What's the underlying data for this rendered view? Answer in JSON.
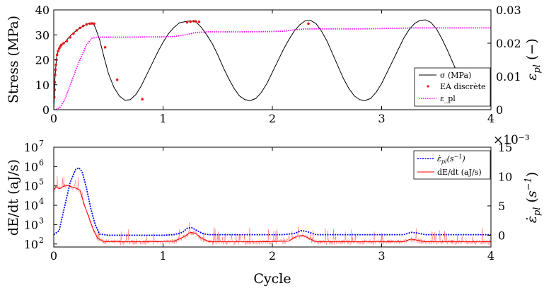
{
  "chart_data": [
    {
      "type": "line",
      "panel": "top",
      "ylabel": "Stress (MPa)",
      "y2label": "ε_pl (−)",
      "xlim": [
        0,
        4
      ],
      "ylim": [
        0,
        40
      ],
      "y2lim": [
        0,
        0.03
      ],
      "xticks": [
        "0",
        "1",
        "2",
        "3",
        "4"
      ],
      "yticks": [
        "0",
        "10",
        "20",
        "30",
        "40"
      ],
      "y2ticks": [
        "0",
        "0.01",
        "0.02",
        "0.03"
      ],
      "grid": false,
      "legend_position": "bottom-right",
      "legend": [
        "σ (MPa)",
        "EA discrète",
        "ε_pl"
      ],
      "colors": {
        "stress": "#000000",
        "ea": "#e41a1c",
        "strain": "#ff00ff"
      },
      "series": [
        {
          "name": "σ (MPa)",
          "axis": "left",
          "style": "solid",
          "x": [
            0,
            0.005,
            0.01,
            0.02,
            0.03,
            0.05,
            0.07,
            0.1,
            0.13,
            0.16,
            0.2,
            0.24,
            0.28,
            0.32,
            0.36,
            0.38,
            0.42,
            0.46,
            0.5,
            0.55,
            0.6,
            0.65,
            0.7,
            0.75,
            0.8,
            0.85,
            0.9,
            0.95,
            1.0,
            1.05,
            1.1,
            1.15,
            1.2,
            1.25,
            1.3,
            1.35,
            1.4,
            1.45,
            1.5,
            1.55,
            1.6,
            1.65,
            1.7,
            1.75,
            1.8,
            1.85,
            1.9,
            1.95,
            2.0,
            2.05,
            2.1,
            2.15,
            2.2,
            2.25,
            2.3,
            2.35,
            2.4,
            2.45,
            2.5,
            2.55,
            2.6,
            2.65,
            2.7,
            2.75,
            2.8,
            2.85,
            2.9,
            2.95,
            3.0,
            3.05,
            3.1,
            3.15,
            3.2,
            3.25,
            3.3,
            3.35,
            3.4,
            3.45,
            3.5,
            3.55,
            3.6,
            3.65,
            3.7,
            3.75,
            3.8,
            3.85,
            3.9,
            3.95,
            4.0
          ],
          "y": [
            0,
            5,
            12,
            18,
            22,
            24.5,
            26,
            27,
            28.5,
            30,
            31.5,
            32.8,
            33.8,
            34.5,
            34.6,
            33,
            28,
            21,
            14.5,
            9,
            5.5,
            3.8,
            4,
            6,
            9.5,
            14,
            18.5,
            23,
            27,
            30.5,
            33,
            34.8,
            35.3,
            35.6,
            35.2,
            33,
            30,
            26.5,
            22,
            17,
            12.5,
            8.5,
            5.5,
            4,
            3.7,
            4.5,
            7,
            10.5,
            15,
            19.5,
            24,
            28,
            31.5,
            34,
            35.6,
            35.8,
            34.5,
            31.5,
            27.5,
            22.5,
            17.5,
            12.5,
            8.5,
            5.5,
            4,
            3.7,
            4.5,
            7,
            10.5,
            15,
            19.5,
            24,
            28.5,
            32,
            34.5,
            35.8,
            36,
            35,
            32.5,
            28.5,
            24,
            19,
            14,
            9.8,
            6.3,
            4.2,
            3.7,
            4.5,
            6.5
          ]
        },
        {
          "name": "EA discrète",
          "axis": "left",
          "style": "markers",
          "x": [
            0.005,
            0.008,
            0.01,
            0.013,
            0.016,
            0.02,
            0.025,
            0.03,
            0.04,
            0.05,
            0.06,
            0.07,
            0.09,
            0.12,
            0.15,
            0.18,
            0.21,
            0.24,
            0.27,
            0.3,
            0.33,
            0.35,
            0.37,
            0.47,
            0.58,
            0.81,
            1.22,
            1.25,
            1.28,
            1.3,
            1.33,
            2.33
          ],
          "y": [
            5,
            8,
            11,
            14,
            16,
            18,
            20,
            22,
            23.5,
            24.5,
            25.3,
            26,
            26.6,
            27.5,
            29,
            30.5,
            31.8,
            32.8,
            33.6,
            34.2,
            34.5,
            34.6,
            34.5,
            25,
            12,
            4.2,
            35,
            35.3,
            35.5,
            35.4,
            35.2,
            34.5
          ]
        },
        {
          "name": "ε_pl",
          "axis": "right",
          "style": "dotted",
          "x": [
            0,
            0.03,
            0.06,
            0.1,
            0.14,
            0.18,
            0.22,
            0.26,
            0.3,
            0.35,
            0.4,
            0.5,
            0.7,
            0.9,
            1.0,
            1.1,
            1.2,
            1.3,
            1.4,
            1.6,
            1.8,
            2.0,
            2.1,
            2.2,
            2.3,
            2.4,
            2.6,
            2.8,
            3.0,
            3.2,
            3.3,
            3.4,
            3.6,
            3.8,
            4.0
          ],
          "y": [
            0,
            0.0002,
            0.0008,
            0.003,
            0.0065,
            0.01,
            0.0135,
            0.0165,
            0.0195,
            0.0215,
            0.0218,
            0.0218,
            0.0218,
            0.0219,
            0.0219,
            0.022,
            0.0225,
            0.0232,
            0.0234,
            0.0234,
            0.0234,
            0.0235,
            0.0236,
            0.024,
            0.0243,
            0.0243,
            0.0243,
            0.0243,
            0.0244,
            0.0245,
            0.0246,
            0.0246,
            0.0246,
            0.0246,
            0.0246
          ]
        }
      ]
    },
    {
      "type": "line",
      "panel": "bottom",
      "xlabel": "Cycle",
      "ylabel": "dE/dt (aJ/s)",
      "y2label": "ε̇_pl (s⁻¹)",
      "yscale": "log",
      "xlim": [
        0,
        4
      ],
      "ylim": [
        70,
        10000000
      ],
      "y2lim": [
        -0.002,
        0.015
      ],
      "y2multiplier": "×10⁻³",
      "xticks": [
        "0",
        "1",
        "2",
        "3",
        "4"
      ],
      "y2ticks": [
        "0",
        "5",
        "10",
        "15"
      ],
      "grid": false,
      "legend_position": "top-right",
      "legend": [
        "ε̇_pl (s⁻¹)",
        "dE/dt (aJ/s)"
      ],
      "colors": {
        "rate": "#0000ff",
        "energy": "#ff0000"
      },
      "series": [
        {
          "name": "ε̇_pl(s⁻¹)",
          "axis": "right",
          "style": "dotted",
          "x": [
            0,
            0.05,
            0.1,
            0.15,
            0.2,
            0.23,
            0.26,
            0.3,
            0.34,
            0.38,
            0.42,
            0.5,
            0.8,
            1.0,
            1.1,
            1.18,
            1.22,
            1.26,
            1.3,
            1.36,
            1.42,
            1.6,
            1.9,
            2.1,
            2.2,
            2.27,
            2.32,
            2.4,
            2.6,
            3.0,
            3.2,
            3.27,
            3.32,
            3.4,
            3.7,
            4.0
          ],
          "y": [
            0.0001,
            0.0008,
            0.005,
            0.009,
            0.0112,
            0.0115,
            0.0108,
            0.008,
            0.0045,
            0.0018,
            0.0002,
            0,
            0,
            0,
            0.0001,
            0.0005,
            0.0012,
            0.0013,
            0.0009,
            0.0003,
            0.0001,
            0.0001,
            0.0001,
            0.0001,
            0.0003,
            0.0008,
            0.0006,
            0.0001,
            0.0001,
            0.0001,
            0.0001,
            0.0005,
            0.0004,
            0.0001,
            0.0001,
            0.0001
          ]
        },
        {
          "name": "dE/dt (aJ/s)",
          "axis": "left",
          "style": "solid",
          "x": [
            0,
            0.02,
            0.05,
            0.08,
            0.12,
            0.16,
            0.2,
            0.24,
            0.28,
            0.32,
            0.36,
            0.4,
            0.45,
            0.5,
            0.7,
            0.9,
            1.1,
            1.2,
            1.25,
            1.3,
            1.35,
            1.42,
            1.6,
            1.9,
            2.15,
            2.22,
            2.28,
            2.33,
            2.4,
            2.7,
            3.0,
            3.2,
            3.27,
            3.32,
            3.4,
            3.7,
            4.0
          ],
          "y": [
            60000,
            90000,
            70000,
            90000,
            110000,
            90000,
            80000,
            60000,
            10000,
            2500,
            600,
            200,
            140,
            130,
            130,
            130,
            140,
            250,
            400,
            350,
            200,
            130,
            130,
            130,
            140,
            250,
            280,
            200,
            130,
            130,
            130,
            130,
            180,
            160,
            130,
            130,
            130
          ]
        }
      ]
    }
  ]
}
